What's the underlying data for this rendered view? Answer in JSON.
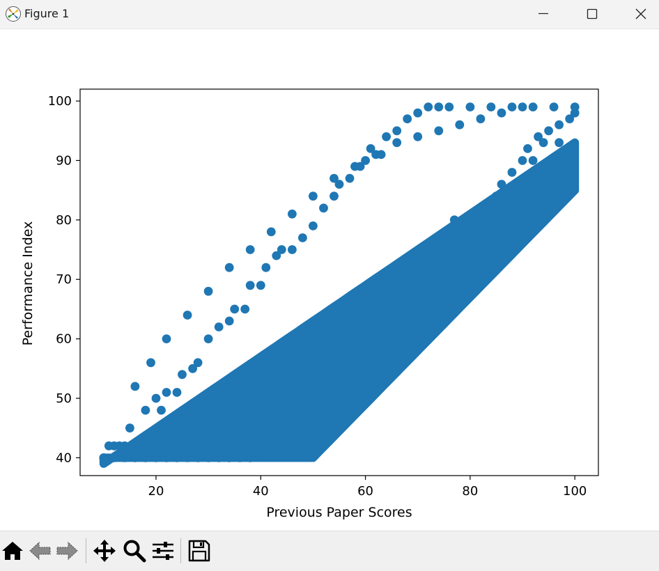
{
  "window": {
    "title": "Figure 1",
    "app_icon": "matplotlib-logo-icon",
    "controls": [
      "minimize-icon",
      "maximize-icon",
      "close-icon"
    ]
  },
  "toolbar": {
    "buttons": [
      {
        "name": "home",
        "icon": "home-icon"
      },
      {
        "name": "back",
        "icon": "back-arrow-icon"
      },
      {
        "name": "forward",
        "icon": "forward-arrow-icon"
      },
      {
        "name": "pan",
        "icon": "move-icon"
      },
      {
        "name": "zoom",
        "icon": "magnifier-icon"
      },
      {
        "name": "configure-subplots",
        "icon": "sliders-icon"
      },
      {
        "name": "save",
        "icon": "floppy-disk-icon"
      }
    ]
  },
  "chart_data": {
    "type": "scatter",
    "title": "",
    "xlabel": "Previous Paper Scores",
    "ylabel": "Performance Index",
    "xlim": [
      5.5,
      104.5
    ],
    "ylim": [
      37.0,
      102.0
    ],
    "xticks": [
      20,
      40,
      60,
      80,
      100
    ],
    "yticks": [
      40,
      50,
      60,
      70,
      80,
      90,
      100
    ],
    "grid": false,
    "marker_color": "#1f77b4",
    "band": {
      "x_range": [
        10,
        100
      ],
      "y_range": [
        40,
        99
      ],
      "note_values": "dense band; upper edge follows y ≈ 0.6x+33 (capped at 99), lower edge follows y ≈ 0.9x−5 (floored at 40)"
    },
    "points": [
      [
        10,
        40
      ],
      [
        11,
        42
      ],
      [
        12,
        42
      ],
      [
        13,
        42
      ],
      [
        14,
        42
      ],
      [
        15,
        45
      ],
      [
        18,
        48
      ],
      [
        20,
        50
      ],
      [
        21,
        48
      ],
      [
        22,
        51
      ],
      [
        24,
        51
      ],
      [
        25,
        54
      ],
      [
        27,
        55
      ],
      [
        28,
        56
      ],
      [
        30,
        60
      ],
      [
        32,
        62
      ],
      [
        34,
        63
      ],
      [
        35,
        65
      ],
      [
        37,
        65
      ],
      [
        38,
        69
      ],
      [
        40,
        69
      ],
      [
        41,
        72
      ],
      [
        43,
        74
      ],
      [
        44,
        75
      ],
      [
        46,
        75
      ],
      [
        48,
        77
      ],
      [
        50,
        79
      ],
      [
        52,
        82
      ],
      [
        54,
        84
      ],
      [
        55,
        86
      ],
      [
        57,
        87
      ],
      [
        59,
        89
      ],
      [
        60,
        90
      ],
      [
        61,
        92
      ],
      [
        63,
        91
      ],
      [
        64,
        94
      ],
      [
        66,
        95
      ],
      [
        68,
        97
      ],
      [
        70,
        98
      ],
      [
        72,
        99
      ],
      [
        74,
        99
      ],
      [
        76,
        99
      ],
      [
        80,
        99
      ],
      [
        84,
        99
      ],
      [
        88,
        99
      ],
      [
        92,
        99
      ],
      [
        96,
        99
      ],
      [
        100,
        99
      ],
      [
        100,
        98
      ],
      [
        99,
        97
      ],
      [
        97,
        96
      ],
      [
        95,
        95
      ],
      [
        93,
        94
      ],
      [
        91,
        92
      ],
      [
        90,
        90
      ],
      [
        88,
        88
      ],
      [
        86,
        86
      ],
      [
        85,
        84
      ],
      [
        83,
        82
      ],
      [
        81,
        80
      ],
      [
        80,
        79
      ],
      [
        78,
        78
      ],
      [
        77,
        76
      ],
      [
        75,
        74
      ],
      [
        73,
        73
      ],
      [
        71,
        72
      ],
      [
        69,
        70
      ],
      [
        67,
        68
      ],
      [
        66,
        66
      ],
      [
        64,
        65
      ],
      [
        62,
        63
      ],
      [
        61,
        62
      ],
      [
        59,
        60
      ],
      [
        57,
        58
      ],
      [
        55,
        56
      ],
      [
        54,
        54
      ],
      [
        52,
        52
      ],
      [
        50,
        51
      ],
      [
        48,
        49
      ],
      [
        47,
        47
      ],
      [
        45,
        45
      ],
      [
        43,
        44
      ],
      [
        41,
        43
      ],
      [
        40,
        41
      ],
      [
        38,
        40
      ],
      [
        36,
        40
      ],
      [
        34,
        40
      ],
      [
        32,
        40
      ],
      [
        30,
        40
      ],
      [
        28,
        40
      ],
      [
        26,
        40
      ],
      [
        24,
        40
      ],
      [
        22,
        40
      ],
      [
        20,
        40
      ],
      [
        18,
        40
      ],
      [
        16,
        40
      ],
      [
        14,
        40
      ],
      [
        12,
        40
      ],
      [
        97,
        93
      ],
      [
        94,
        93
      ],
      [
        92,
        90
      ],
      [
        89,
        86
      ],
      [
        87,
        84
      ],
      [
        85,
        84
      ],
      [
        82,
        80
      ],
      [
        79,
        79
      ],
      [
        77,
        80
      ],
      [
        75,
        74
      ],
      [
        73,
        73
      ],
      [
        70,
        71
      ],
      [
        68,
        69
      ],
      [
        66,
        67
      ],
      [
        65,
        64
      ],
      [
        63,
        63
      ],
      [
        61,
        61
      ],
      [
        58,
        58
      ],
      [
        57,
        60
      ],
      [
        53,
        54
      ],
      [
        50,
        52
      ],
      [
        49,
        50
      ],
      [
        46,
        49
      ],
      [
        45,
        47
      ],
      [
        43,
        48
      ],
      [
        42,
        46
      ],
      [
        40,
        45
      ],
      [
        38,
        44
      ],
      [
        36,
        43
      ],
      [
        35,
        42
      ],
      [
        90,
        99
      ],
      [
        86,
        98
      ],
      [
        82,
        97
      ],
      [
        78,
        96
      ],
      [
        74,
        95
      ],
      [
        70,
        94
      ],
      [
        66,
        93
      ],
      [
        62,
        91
      ],
      [
        58,
        89
      ],
      [
        54,
        87
      ],
      [
        50,
        84
      ],
      [
        46,
        81
      ],
      [
        42,
        78
      ],
      [
        38,
        75
      ],
      [
        34,
        72
      ],
      [
        30,
        68
      ],
      [
        26,
        64
      ],
      [
        22,
        60
      ],
      [
        19,
        56
      ],
      [
        16,
        52
      ]
    ]
  }
}
